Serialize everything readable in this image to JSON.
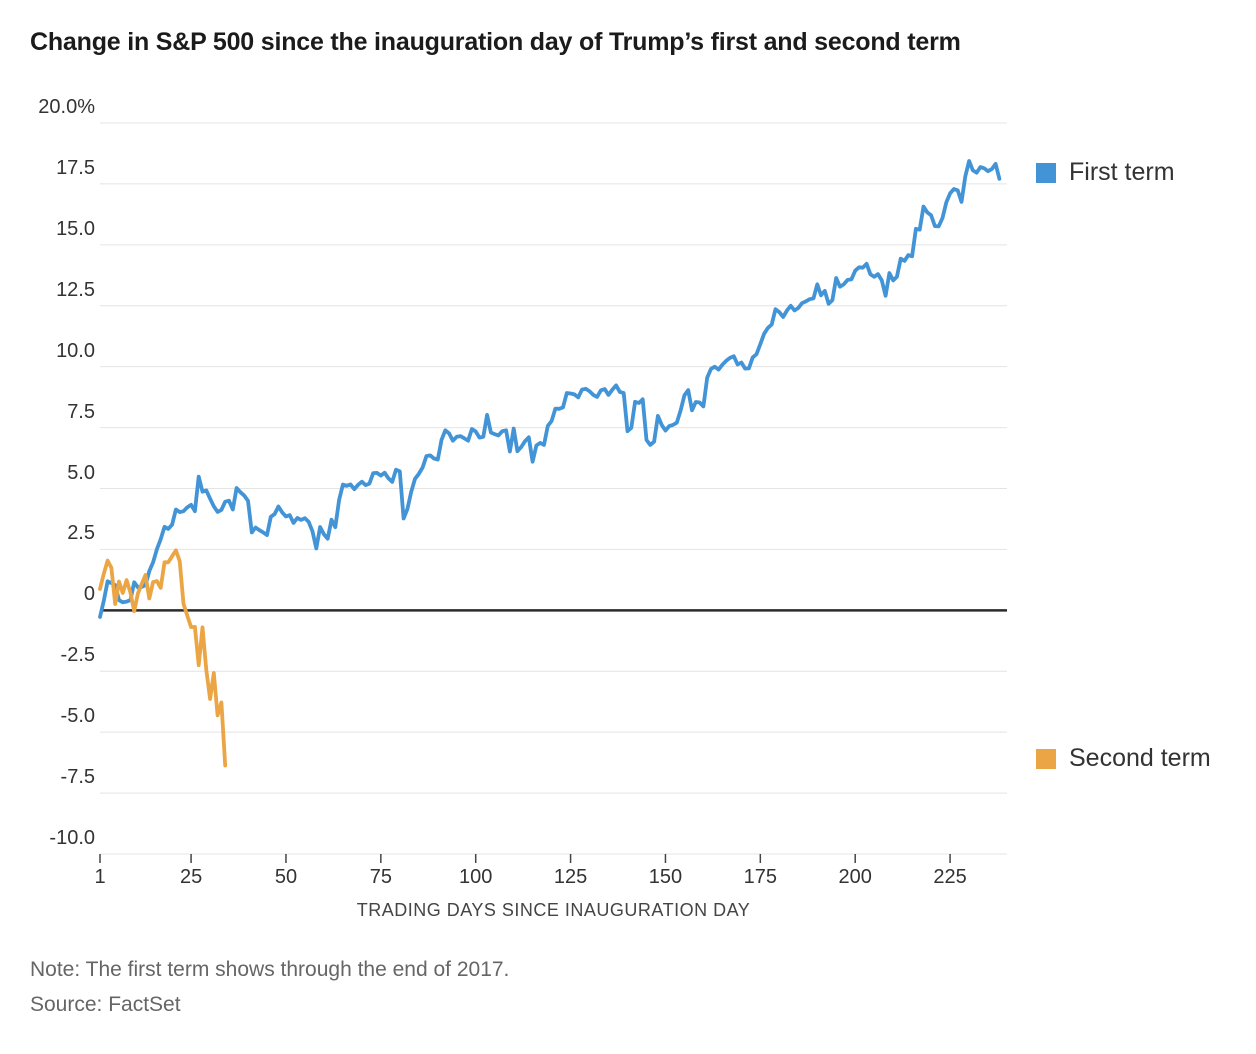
{
  "title": "Change in S&P 500 since the inauguration day of Trump’s first and second term",
  "note": "Note: The first term shows through the end of 2017.",
  "source": "Source: FactSet",
  "chart_data": {
    "type": "line",
    "title": "Change in S&P 500 since the inauguration day of Trump’s first and second term",
    "grid": "horizontal",
    "legend_position": "right-of-line-ends",
    "x_axis": {
      "label": "TRADING DAYS SINCE INAUGURATION DAY",
      "ticks": [
        1,
        25,
        50,
        75,
        100,
        125,
        150,
        175,
        200,
        225
      ],
      "range": [
        1,
        240
      ]
    },
    "y_axis": {
      "unit": "%",
      "range": [
        -10,
        20
      ],
      "tick_values": [
        20,
        17.5,
        15,
        12.5,
        10,
        7.5,
        5,
        2.5,
        0,
        -2.5,
        -5,
        -7.5,
        -10
      ],
      "tick_labels": [
        "20.0%",
        "17.5",
        "15.0",
        "12.5",
        "10.0",
        "7.5",
        "5.0",
        "2.5",
        "0",
        "-2.5",
        "-5.0",
        "-7.5",
        "-10.0"
      ],
      "zero_line": true
    },
    "series": [
      {
        "name": "First term",
        "color": "#4294d6",
        "start_day": 1,
        "values": [
          -0.27,
          0.39,
          1.19,
          1.12,
          1.03,
          0.42,
          0.33,
          0.36,
          0.42,
          1.15,
          0.94,
          0.96,
          1.03,
          1.61,
          1.97,
          2.51,
          2.92,
          3.43,
          3.34,
          3.52,
          4.14,
          4.03,
          4.07,
          4.23,
          4.33,
          4.07,
          5.49,
          4.87,
          4.92,
          4.58,
          4.27,
          4.04,
          4.12,
          4.46,
          4.5,
          4.14,
          5.02,
          4.85,
          4.71,
          4.5,
          3.2,
          3.4,
          3.29,
          3.2,
          3.09,
          3.84,
          3.95,
          4.26,
          4.02,
          3.85,
          3.91,
          3.59,
          3.79,
          3.71,
          3.78,
          3.63,
          3.24,
          2.54,
          3.42,
          3.12,
          2.94,
          3.72,
          3.41,
          4.53,
          5.16,
          5.11,
          5.17,
          4.97,
          5.15,
          5.28,
          5.14,
          5.2,
          5.63,
          5.64,
          5.53,
          5.65,
          5.42,
          5.27,
          5.77,
          5.7,
          3.77,
          4.16,
          4.86,
          5.4,
          5.6,
          5.86,
          6.33,
          6.36,
          6.23,
          6.19,
          6.99,
          7.39,
          7.26,
          6.96,
          7.12,
          7.15,
          7.06,
          6.96,
          7.44,
          7.34,
          7.09,
          7.12,
          8.02,
          7.3,
          7.23,
          7.18,
          7.35,
          7.39,
          6.52,
          7.46,
          6.53,
          6.7,
          6.94,
          7.1,
          6.1,
          6.77,
          6.87,
          6.79,
          7.57,
          7.77,
          8.28,
          8.27,
          8.33,
          8.92,
          8.9,
          8.86,
          8.74,
          9.06,
          9.09,
          8.99,
          8.84,
          8.76,
          9.03,
          9.08,
          8.84,
          9.05,
          9.23,
          8.96,
          8.92,
          7.35,
          7.49,
          8.56,
          8.51,
          8.66,
          6.99,
          6.79,
          6.92,
          7.98,
          7.61,
          7.38,
          7.56,
          7.61,
          7.7,
          8.2,
          8.82,
          9.04,
          8.21,
          8.55,
          8.53,
          8.37,
          9.55,
          9.91,
          10.0,
          9.88,
          10.08,
          10.24,
          10.36,
          10.43,
          10.09,
          10.17,
          9.92,
          9.93,
          10.38,
          10.51,
          10.92,
          11.35,
          11.59,
          11.73,
          12.36,
          12.24,
          12.04,
          12.3,
          12.5,
          12.31,
          12.41,
          12.61,
          12.68,
          12.77,
          12.8,
          13.38,
          12.93,
          13.11,
          12.58,
          12.73,
          13.64,
          13.28,
          13.38,
          13.56,
          13.58,
          13.94,
          14.08,
          14.06,
          14.22,
          13.79,
          13.69,
          13.8,
          13.54,
          12.91,
          13.84,
          13.54,
          13.69,
          14.43,
          14.34,
          14.58,
          14.53,
          15.66,
          15.62,
          16.57,
          16.33,
          16.21,
          15.77,
          15.76,
          16.1,
          16.74,
          17.11,
          17.29,
          17.24,
          16.76,
          17.81,
          18.44,
          18.06,
          17.96,
          18.19,
          18.14,
          18.02,
          18.11,
          18.32,
          17.71
        ]
      },
      {
        "name": "Second term",
        "color": "#eca545",
        "start_day": 1,
        "values": [
          0.88,
          1.5,
          2.04,
          1.74,
          0.26,
          1.18,
          0.71,
          1.24,
          0.73,
          -0.03,
          0.69,
          1.08,
          1.45,
          0.49,
          1.16,
          1.2,
          0.92,
          1.97,
          1.97,
          2.22,
          2.46,
          2.02,
          0.27,
          -0.22,
          -0.69,
          -0.68,
          -2.25,
          -0.7,
          -2.45,
          -3.64,
          -2.57,
          -4.31,
          -3.78,
          -6.37
        ]
      }
    ]
  }
}
